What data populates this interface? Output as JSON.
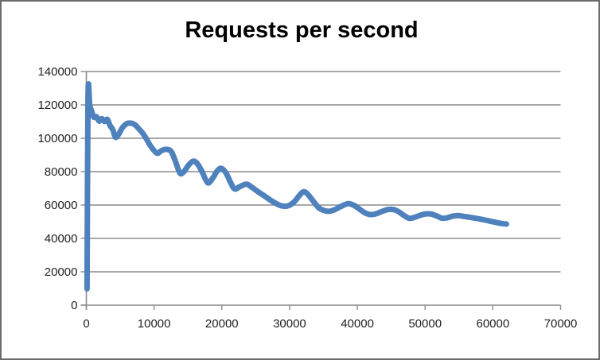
{
  "chart_data": {
    "type": "line",
    "title": "Requests per second",
    "xlabel": "",
    "ylabel": "",
    "xlim": [
      0,
      70000
    ],
    "ylim": [
      0,
      140000
    ],
    "xticks": [
      0,
      10000,
      20000,
      30000,
      40000,
      50000,
      60000,
      70000
    ],
    "yticks": [
      0,
      20000,
      40000,
      60000,
      80000,
      100000,
      120000,
      140000
    ],
    "grid": "horizontal",
    "legend": "none",
    "colors": {
      "line": "#4F81BD",
      "gridline": "#8C8C8C",
      "axis": "#8C8C8C",
      "tick_text": "#1f1f1f",
      "title_text": "#000000",
      "background": "#ffffff",
      "border": "#6b6b6b"
    },
    "series": [
      {
        "name": "Requests per second",
        "color": "#4F81BD",
        "points": [
          [
            100,
            9800
          ],
          [
            250,
            125500
          ],
          [
            500,
            119500
          ],
          [
            800,
            116000
          ],
          [
            1100,
            112600
          ],
          [
            1500,
            112900
          ],
          [
            1900,
            110300
          ],
          [
            2300,
            111800
          ],
          [
            2700,
            110100
          ],
          [
            3100,
            111300
          ],
          [
            3500,
            107600
          ],
          [
            3900,
            105200
          ],
          [
            4300,
            100600
          ],
          [
            4800,
            102600
          ],
          [
            5300,
            106200
          ],
          [
            5900,
            108600
          ],
          [
            6500,
            109100
          ],
          [
            7100,
            108300
          ],
          [
            7700,
            105900
          ],
          [
            8300,
            103100
          ],
          [
            8900,
            99400
          ],
          [
            9500,
            95300
          ],
          [
            10400,
            91100
          ],
          [
            11100,
            92600
          ],
          [
            11800,
            93400
          ],
          [
            12500,
            92200
          ],
          [
            13100,
            86800
          ],
          [
            13800,
            79200
          ],
          [
            14400,
            80000
          ],
          [
            15100,
            84000
          ],
          [
            15800,
            86300
          ],
          [
            16400,
            84700
          ],
          [
            17100,
            79800
          ],
          [
            17900,
            73400
          ],
          [
            18600,
            75800
          ],
          [
            19300,
            80300
          ],
          [
            19900,
            82000
          ],
          [
            20600,
            79300
          ],
          [
            21300,
            73400
          ],
          [
            21900,
            69600
          ],
          [
            22600,
            70900
          ],
          [
            23600,
            72500
          ],
          [
            24300,
            71000
          ],
          [
            25300,
            68100
          ],
          [
            26300,
            65400
          ],
          [
            27300,
            62600
          ],
          [
            28300,
            60300
          ],
          [
            29100,
            59300
          ],
          [
            29900,
            59700
          ],
          [
            30700,
            62000
          ],
          [
            31500,
            66000
          ],
          [
            32100,
            68000
          ],
          [
            32700,
            66400
          ],
          [
            33500,
            62300
          ],
          [
            34300,
            58400
          ],
          [
            35100,
            56700
          ],
          [
            35900,
            56300
          ],
          [
            36700,
            57300
          ],
          [
            37500,
            59000
          ],
          [
            38600,
            60800
          ],
          [
            39500,
            59800
          ],
          [
            40300,
            57600
          ],
          [
            41100,
            55400
          ],
          [
            41900,
            54300
          ],
          [
            42700,
            54700
          ],
          [
            43600,
            56100
          ],
          [
            44500,
            57300
          ],
          [
            45300,
            57300
          ],
          [
            46100,
            56000
          ],
          [
            46900,
            53700
          ],
          [
            47700,
            52000
          ],
          [
            48500,
            52700
          ],
          [
            49300,
            53900
          ],
          [
            50100,
            54700
          ],
          [
            50900,
            54600
          ],
          [
            51700,
            53500
          ],
          [
            52500,
            52100
          ],
          [
            53300,
            52400
          ],
          [
            54100,
            53400
          ],
          [
            54900,
            53700
          ],
          [
            55700,
            53200
          ],
          [
            56500,
            52700
          ],
          [
            57300,
            52200
          ],
          [
            58300,
            51500
          ],
          [
            59300,
            50600
          ],
          [
            60300,
            49700
          ],
          [
            61300,
            48900
          ],
          [
            62000,
            48600
          ]
        ]
      }
    ]
  }
}
